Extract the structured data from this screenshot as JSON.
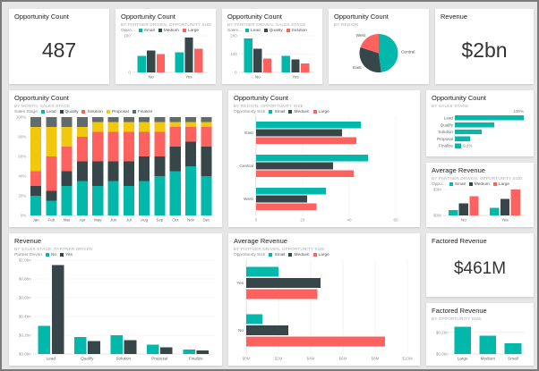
{
  "palette": {
    "teal": "#01B8AA",
    "dark": "#374649",
    "coral": "#FD625E",
    "yellow": "#F2C80F",
    "gray": "#5F6B6D",
    "background": "#E6E6E6",
    "tile": "#FFFFFF"
  },
  "chart_data": [
    {
      "type": "card",
      "title": "Opportunity Count",
      "value": "487"
    },
    {
      "type": "bar",
      "orientation": "vertical",
      "title": "Opportunity Count",
      "subtitle": "BY PARTNER DRIVEN, OPPORTUNITY SIZE",
      "legend": {
        "title": "Oppo...",
        "items": [
          {
            "label": "Small",
            "color": "#01B8AA"
          },
          {
            "label": "Medium",
            "color": "#374649"
          },
          {
            "label": "Large",
            "color": "#FD625E"
          }
        ]
      },
      "categories": [
        "No",
        "Yes"
      ],
      "ymax": 100,
      "yticks": [
        {
          "v": 0,
          "l": "0"
        },
        {
          "v": 100,
          "l": "100"
        }
      ],
      "series": [
        {
          "name": "Small",
          "color": "#01B8AA",
          "values": [
            45,
            55
          ]
        },
        {
          "name": "Medium",
          "color": "#374649",
          "values": [
            60,
            95
          ]
        },
        {
          "name": "Large",
          "color": "#FD625E",
          "values": [
            50,
            65
          ]
        }
      ]
    },
    {
      "type": "bar",
      "orientation": "vertical",
      "title": "Opportunity Count",
      "subtitle": "BY PARTNER DRIVEN, SALES STAGE",
      "legend": {
        "title": "Sales...",
        "items": [
          {
            "label": "Lead",
            "color": "#01B8AA"
          },
          {
            "label": "Qualify",
            "color": "#374649"
          },
          {
            "label": "Solution",
            "color": "#FD625E"
          }
        ]
      },
      "categories": [
        "No",
        "Yes"
      ],
      "ymax": 200,
      "yticks": [
        {
          "v": 0,
          "l": "0"
        },
        {
          "v": 100,
          "l": "100"
        },
        {
          "v": 200,
          "l": "200"
        }
      ],
      "series": [
        {
          "name": "Lead",
          "color": "#01B8AA",
          "values": [
            185,
            90
          ]
        },
        {
          "name": "Qualify",
          "color": "#374649",
          "values": [
            130,
            70
          ]
        },
        {
          "name": "Solution",
          "color": "#FD625E",
          "values": [
            75,
            50
          ]
        }
      ]
    },
    {
      "type": "pie",
      "title": "Opportunity Count",
      "subtitle": "BY REGION",
      "slices": [
        {
          "label": "Central",
          "value": 48,
          "color": "#01B8AA"
        },
        {
          "label": "East",
          "value": 32,
          "color": "#374649"
        },
        {
          "label": "West",
          "value": 20,
          "color": "#FD625E"
        }
      ]
    },
    {
      "type": "card",
      "title": "Revenue",
      "value": "$2bn"
    },
    {
      "type": "stacked_bar_100",
      "title": "Opportunity Count",
      "subtitle": "BY MONTH, SALES STAGE",
      "legend": {
        "title": "Sales Stage",
        "items": [
          {
            "label": "Lead",
            "color": "#01B8AA"
          },
          {
            "label": "Qualify",
            "color": "#374649"
          },
          {
            "label": "Solution",
            "color": "#FD625E"
          },
          {
            "label": "Proposal",
            "color": "#F2C80F"
          },
          {
            "label": "Finalize",
            "color": "#5F6B6D"
          }
        ]
      },
      "categories": [
        "Jan",
        "Feb",
        "Mar",
        "Apr",
        "May",
        "Jun",
        "Jul",
        "Aug",
        "Sep",
        "Oct",
        "Nov",
        "Dec"
      ],
      "ymax": 100,
      "yticks": [
        {
          "v": 0,
          "l": "0%"
        },
        {
          "v": 20,
          "l": "20%"
        },
        {
          "v": 40,
          "l": "40%"
        },
        {
          "v": 60,
          "l": "60%"
        },
        {
          "v": 80,
          "l": "80%"
        },
        {
          "v": 100,
          "l": "100%"
        }
      ],
      "series": [
        {
          "name": "Lead",
          "color": "#01B8AA",
          "values": [
            20,
            15,
            30,
            35,
            30,
            35,
            30,
            35,
            40,
            45,
            50,
            40
          ]
        },
        {
          "name": "Qualify",
          "color": "#374649",
          "values": [
            10,
            10,
            15,
            20,
            25,
            20,
            25,
            25,
            20,
            25,
            25,
            30
          ]
        },
        {
          "name": "Solution",
          "color": "#FD625E",
          "values": [
            15,
            35,
            25,
            25,
            30,
            30,
            30,
            25,
            25,
            20,
            15,
            20
          ]
        },
        {
          "name": "Proposal",
          "color": "#F2C80F",
          "values": [
            45,
            30,
            20,
            10,
            10,
            10,
            10,
            10,
            10,
            5,
            5,
            5
          ]
        },
        {
          "name": "Finalize",
          "color": "#5F6B6D",
          "values": [
            10,
            10,
            10,
            10,
            5,
            5,
            5,
            5,
            5,
            5,
            5,
            5
          ]
        }
      ]
    },
    {
      "type": "bar",
      "orientation": "horizontal",
      "title": "Opportunity Count",
      "subtitle": "BY REGION, OPPORTUNITY SIZE",
      "legend": {
        "title": "Opportunity Size",
        "items": [
          {
            "label": "Small",
            "color": "#01B8AA"
          },
          {
            "label": "Medium",
            "color": "#374649"
          },
          {
            "label": "Large",
            "color": "#FD625E"
          }
        ]
      },
      "categories": [
        "East",
        "Central",
        "West"
      ],
      "xmax": 65,
      "xticks": [
        {
          "v": 0,
          "l": "0"
        },
        {
          "v": 20,
          "l": "20"
        },
        {
          "v": 40,
          "l": "40"
        },
        {
          "v": 60,
          "l": "60"
        }
      ],
      "series": [
        {
          "name": "Small",
          "color": "#01B8AA",
          "values": [
            45,
            48,
            30
          ]
        },
        {
          "name": "Medium",
          "color": "#374649",
          "values": [
            37,
            33,
            22
          ]
        },
        {
          "name": "Large",
          "color": "#FD625E",
          "values": [
            43,
            42,
            26
          ]
        }
      ]
    },
    {
      "type": "funnel",
      "title": "Opportunity Count",
      "subtitle": "BY SALES STAGE",
      "color": "#01B8AA",
      "max": 100,
      "top_label": "100%",
      "bottom_label": "9.2%",
      "stages": [
        {
          "label": "Lead",
          "value": 100
        },
        {
          "label": "Qualify",
          "value": 57
        },
        {
          "label": "Solution",
          "value": 39
        },
        {
          "label": "Proposal",
          "value": 22
        },
        {
          "label": "Finalize",
          "value": 9.2
        }
      ]
    },
    {
      "type": "bar",
      "orientation": "vertical",
      "title": "Average Revenue",
      "subtitle": "BY PARTNER DRIVEN, OPPORTUNITY SIZE",
      "legend": {
        "title": "Oppo...",
        "items": [
          {
            "label": "Small",
            "color": "#01B8AA"
          },
          {
            "label": "Medium",
            "color": "#374649"
          },
          {
            "label": "Large",
            "color": "#FD625E"
          }
        ]
      },
      "categories": [
        "No",
        "Yes"
      ],
      "ymax": 3,
      "yticks": [
        {
          "v": 0,
          "l": "$0M"
        },
        {
          "v": 3,
          "l": "$3M"
        }
      ],
      "series": [
        {
          "name": "Small",
          "color": "#01B8AA",
          "values": [
            0.6,
            0.9
          ]
        },
        {
          "name": "Medium",
          "color": "#374649",
          "values": [
            1.4,
            1.9
          ]
        },
        {
          "name": "Large",
          "color": "#FD625E",
          "values": [
            2.2,
            3.0
          ]
        }
      ]
    },
    {
      "type": "bar",
      "orientation": "vertical",
      "title": "Revenue",
      "subtitle": "BY SALES STAGE, PARTNER DRIVEN",
      "legend": {
        "title": "Partner Driven",
        "items": [
          {
            "label": "No",
            "color": "#01B8AA"
          },
          {
            "label": "Yes",
            "color": "#374649"
          }
        ]
      },
      "categories": [
        "Lead",
        "Qualify",
        "Solution",
        "Proposal",
        "Finalize"
      ],
      "ymax": 1.0,
      "yticks": [
        {
          "v": 0,
          "l": "$0.0bn"
        },
        {
          "v": 0.2,
          "l": "$0.2bn"
        },
        {
          "v": 0.4,
          "l": "$0.4bn"
        },
        {
          "v": 0.6,
          "l": "$0.6bn"
        },
        {
          "v": 0.8,
          "l": "$0.8bn"
        },
        {
          "v": 1.0,
          "l": "$1.0bn"
        }
      ],
      "series": [
        {
          "name": "No",
          "color": "#01B8AA",
          "values": [
            0.3,
            0.18,
            0.2,
            0.1,
            0.05
          ]
        },
        {
          "name": "Yes",
          "color": "#374649",
          "values": [
            0.95,
            0.14,
            0.15,
            0.07,
            0.04
          ]
        }
      ]
    },
    {
      "type": "bar",
      "orientation": "horizontal",
      "title": "Average Revenue",
      "subtitle": "BY PARTNER DRIVEN, OPPORTUNITY SIZE",
      "legend": {
        "title": "Opportunity Size",
        "items": [
          {
            "label": "Small",
            "color": "#01B8AA"
          },
          {
            "label": "Medium",
            "color": "#374649"
          },
          {
            "label": "Large",
            "color": "#FD625E"
          }
        ]
      },
      "categories": [
        "Yes",
        "No"
      ],
      "xmax": 10,
      "xticks": [
        {
          "v": 0,
          "l": "$0M"
        },
        {
          "v": 2,
          "l": "$2M"
        },
        {
          "v": 4,
          "l": "$4M"
        },
        {
          "v": 6,
          "l": "$6M"
        },
        {
          "v": 8,
          "l": "$8M"
        },
        {
          "v": 10,
          "l": "$10M"
        }
      ],
      "series": [
        {
          "name": "Small",
          "color": "#01B8AA",
          "values": [
            2.0,
            1.0
          ]
        },
        {
          "name": "Medium",
          "color": "#374649",
          "values": [
            4.6,
            2.6
          ]
        },
        {
          "name": "Large",
          "color": "#FD625E",
          "values": [
            4.4,
            8.6
          ]
        }
      ]
    },
    {
      "type": "card",
      "title": "Factored Revenue",
      "value": "$461M"
    },
    {
      "type": "bar",
      "orientation": "vertical",
      "title": "Factored Revenue",
      "subtitle": "BY OPPORTUNITY SIZE",
      "categories": [
        "Large",
        "Medium",
        "Small"
      ],
      "ymax": 0.28,
      "yticks": [
        {
          "v": 0,
          "l": "$0.0bn"
        },
        {
          "v": 0.2,
          "l": "$0.2bn"
        }
      ],
      "series": [
        {
          "name": "Factored Revenue",
          "color": "#01B8AA",
          "values": [
            0.25,
            0.17,
            0.1
          ]
        }
      ]
    }
  ]
}
